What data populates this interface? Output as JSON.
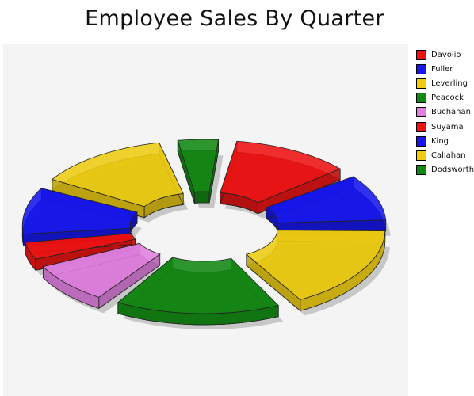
{
  "chart_data": {
    "type": "pie",
    "variant": "3d-exploded-donut",
    "title": "Employee Sales By Quarter",
    "legend_position": "right",
    "categories": [
      "Davolio",
      "Fuller",
      "Leverling",
      "Peacock",
      "Buchanan",
      "Suyama",
      "King",
      "Callahan",
      "Dodsworth"
    ],
    "values": [
      12.1,
      10.0,
      17.0,
      16.3,
      8.9,
      4.4,
      10.1,
      13.4,
      4.8
    ],
    "colors": [
      "#ee1111",
      "#1515ee",
      "#eecc11",
      "#118811",
      "#e080e0",
      "#ee1111",
      "#1515ee",
      "#eecc11",
      "#118811"
    ]
  }
}
